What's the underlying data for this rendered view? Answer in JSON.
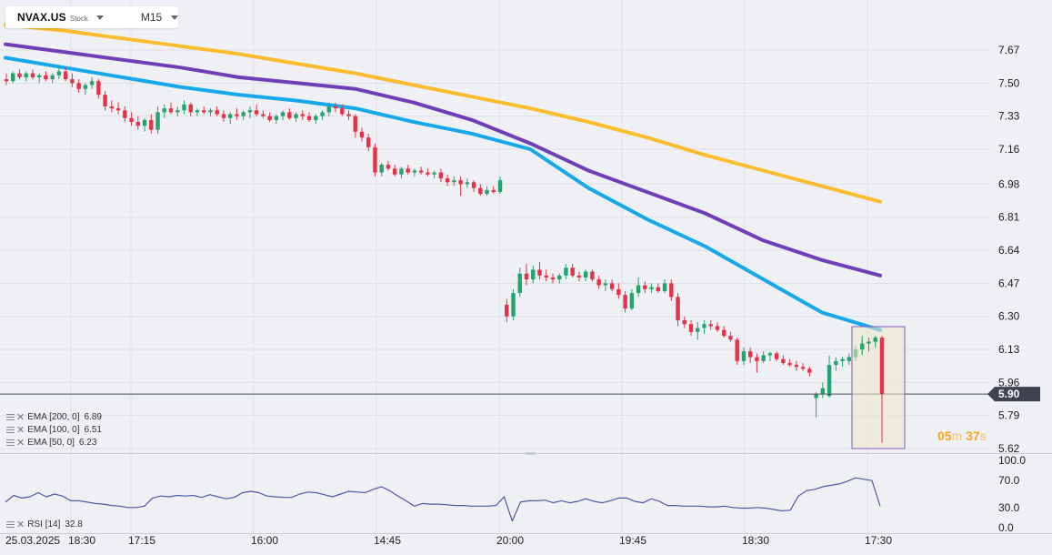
{
  "header": {
    "symbol": "NVAX.US",
    "instrument_type": "Stock",
    "timeframe": "M15"
  },
  "current_price_label": "5.90",
  "countdown": {
    "minutes": "05",
    "min_unit": "m",
    "seconds": "37",
    "sec_unit": "s"
  },
  "indicators": [
    {
      "label": "EMA [200, 0]",
      "value": "6.89",
      "color": "#fbbc2e"
    },
    {
      "label": "EMA [100, 0]",
      "value": "6.51",
      "color": "#6e3fb7"
    },
    {
      "label": "EMA [50, 0]",
      "value": "6.23",
      "color": "#17a8ea"
    }
  ],
  "rsi": {
    "label": "RSI [14]",
    "value": "32.8",
    "color": "#4d5aa8"
  },
  "chart_data": [
    {
      "type": "candlestick",
      "title": "NVAX.US",
      "y_ticks": [
        "7.67",
        "7.50",
        "7.33",
        "7.16",
        "6.98",
        "6.81",
        "6.64",
        "6.47",
        "6.30",
        "6.13",
        "5.96",
        "5.79",
        "5.62"
      ],
      "ylim": [
        5.62,
        7.67
      ],
      "x_ticks": [
        "25.03.2025",
        "18:30",
        "17:15",
        "16:00",
        "14:45",
        "20:00",
        "19:45",
        "18:30",
        "17:30"
      ],
      "current_price": 5.9,
      "grid": true,
      "candles": [
        {
          "o": 7.52,
          "h": 7.55,
          "l": 7.49,
          "c": 7.51
        },
        {
          "o": 7.51,
          "h": 7.56,
          "l": 7.5,
          "c": 7.55
        },
        {
          "o": 7.55,
          "h": 7.57,
          "l": 7.52,
          "c": 7.53
        },
        {
          "o": 7.53,
          "h": 7.56,
          "l": 7.51,
          "c": 7.55
        },
        {
          "o": 7.55,
          "h": 7.57,
          "l": 7.52,
          "c": 7.53
        },
        {
          "o": 7.53,
          "h": 7.55,
          "l": 7.5,
          "c": 7.54
        },
        {
          "o": 7.54,
          "h": 7.56,
          "l": 7.51,
          "c": 7.52
        },
        {
          "o": 7.52,
          "h": 7.55,
          "l": 7.5,
          "c": 7.54
        },
        {
          "o": 7.54,
          "h": 7.58,
          "l": 7.52,
          "c": 7.56
        },
        {
          "o": 7.56,
          "h": 7.58,
          "l": 7.51,
          "c": 7.52
        },
        {
          "o": 7.52,
          "h": 7.55,
          "l": 7.48,
          "c": 7.5
        },
        {
          "o": 7.5,
          "h": 7.52,
          "l": 7.45,
          "c": 7.47
        },
        {
          "o": 7.47,
          "h": 7.5,
          "l": 7.44,
          "c": 7.49
        },
        {
          "o": 7.49,
          "h": 7.53,
          "l": 7.47,
          "c": 7.51
        },
        {
          "o": 7.51,
          "h": 7.52,
          "l": 7.42,
          "c": 7.44
        },
        {
          "o": 7.44,
          "h": 7.46,
          "l": 7.36,
          "c": 7.38
        },
        {
          "o": 7.38,
          "h": 7.41,
          "l": 7.35,
          "c": 7.37
        },
        {
          "o": 7.37,
          "h": 7.4,
          "l": 7.34,
          "c": 7.36
        },
        {
          "o": 7.36,
          "h": 7.38,
          "l": 7.3,
          "c": 7.32
        },
        {
          "o": 7.32,
          "h": 7.35,
          "l": 7.28,
          "c": 7.3
        },
        {
          "o": 7.3,
          "h": 7.33,
          "l": 7.26,
          "c": 7.28
        },
        {
          "o": 7.28,
          "h": 7.32,
          "l": 7.25,
          "c": 7.31
        },
        {
          "o": 7.31,
          "h": 7.34,
          "l": 7.24,
          "c": 7.26
        },
        {
          "o": 7.26,
          "h": 7.38,
          "l": 7.24,
          "c": 7.35
        },
        {
          "o": 7.35,
          "h": 7.39,
          "l": 7.32,
          "c": 7.37
        },
        {
          "o": 7.37,
          "h": 7.4,
          "l": 7.34,
          "c": 7.35
        },
        {
          "o": 7.35,
          "h": 7.38,
          "l": 7.33,
          "c": 7.36
        },
        {
          "o": 7.36,
          "h": 7.41,
          "l": 7.34,
          "c": 7.39
        },
        {
          "o": 7.39,
          "h": 7.4,
          "l": 7.33,
          "c": 7.35
        },
        {
          "o": 7.35,
          "h": 7.37,
          "l": 7.33,
          "c": 7.36
        },
        {
          "o": 7.36,
          "h": 7.38,
          "l": 7.34,
          "c": 7.35
        },
        {
          "o": 7.35,
          "h": 7.37,
          "l": 7.33,
          "c": 7.36
        },
        {
          "o": 7.36,
          "h": 7.38,
          "l": 7.33,
          "c": 7.34
        },
        {
          "o": 7.34,
          "h": 7.36,
          "l": 7.3,
          "c": 7.32
        },
        {
          "o": 7.32,
          "h": 7.35,
          "l": 7.29,
          "c": 7.34
        },
        {
          "o": 7.34,
          "h": 7.37,
          "l": 7.31,
          "c": 7.33
        },
        {
          "o": 7.33,
          "h": 7.36,
          "l": 7.31,
          "c": 7.35
        },
        {
          "o": 7.35,
          "h": 7.38,
          "l": 7.32,
          "c": 7.36
        },
        {
          "o": 7.36,
          "h": 7.39,
          "l": 7.33,
          "c": 7.34
        },
        {
          "o": 7.34,
          "h": 7.36,
          "l": 7.32,
          "c": 7.33
        },
        {
          "o": 7.33,
          "h": 7.35,
          "l": 7.3,
          "c": 7.31
        },
        {
          "o": 7.31,
          "h": 7.34,
          "l": 7.29,
          "c": 7.33
        },
        {
          "o": 7.33,
          "h": 7.36,
          "l": 7.31,
          "c": 7.35
        },
        {
          "o": 7.35,
          "h": 7.37,
          "l": 7.31,
          "c": 7.32
        },
        {
          "o": 7.32,
          "h": 7.35,
          "l": 7.3,
          "c": 7.34
        },
        {
          "o": 7.34,
          "h": 7.36,
          "l": 7.31,
          "c": 7.33
        },
        {
          "o": 7.33,
          "h": 7.35,
          "l": 7.3,
          "c": 7.31
        },
        {
          "o": 7.31,
          "h": 7.34,
          "l": 7.29,
          "c": 7.33
        },
        {
          "o": 7.33,
          "h": 7.36,
          "l": 7.31,
          "c": 7.35
        },
        {
          "o": 7.35,
          "h": 7.4,
          "l": 7.33,
          "c": 7.38
        },
        {
          "o": 7.38,
          "h": 7.4,
          "l": 7.35,
          "c": 7.37
        },
        {
          "o": 7.37,
          "h": 7.39,
          "l": 7.33,
          "c": 7.34
        },
        {
          "o": 7.34,
          "h": 7.36,
          "l": 7.31,
          "c": 7.33
        },
        {
          "o": 7.33,
          "h": 7.34,
          "l": 7.22,
          "c": 7.25
        },
        {
          "o": 7.25,
          "h": 7.27,
          "l": 7.2,
          "c": 7.22
        },
        {
          "o": 7.22,
          "h": 7.24,
          "l": 7.15,
          "c": 7.17
        },
        {
          "o": 7.17,
          "h": 7.19,
          "l": 7.02,
          "c": 7.04
        },
        {
          "o": 7.04,
          "h": 7.09,
          "l": 7.02,
          "c": 7.08
        },
        {
          "o": 7.08,
          "h": 7.1,
          "l": 7.05,
          "c": 7.06
        },
        {
          "o": 7.06,
          "h": 7.08,
          "l": 7.02,
          "c": 7.03
        },
        {
          "o": 7.03,
          "h": 7.07,
          "l": 7.01,
          "c": 7.06
        },
        {
          "o": 7.06,
          "h": 7.08,
          "l": 7.03,
          "c": 7.04
        },
        {
          "o": 7.04,
          "h": 7.06,
          "l": 7.02,
          "c": 7.05
        },
        {
          "o": 7.05,
          "h": 7.07,
          "l": 7.03,
          "c": 7.04
        },
        {
          "o": 7.04,
          "h": 7.06,
          "l": 7.02,
          "c": 7.03
        },
        {
          "o": 7.03,
          "h": 7.05,
          "l": 7.01,
          "c": 7.04
        },
        {
          "o": 7.04,
          "h": 7.06,
          "l": 6.99,
          "c": 7.01
        },
        {
          "o": 7.01,
          "h": 7.03,
          "l": 6.97,
          "c": 6.99
        },
        {
          "o": 6.99,
          "h": 7.02,
          "l": 6.97,
          "c": 7.0
        },
        {
          "o": 7.0,
          "h": 7.02,
          "l": 6.92,
          "c": 6.98
        },
        {
          "o": 6.98,
          "h": 7.01,
          "l": 6.96,
          "c": 6.99
        },
        {
          "o": 6.99,
          "h": 7.0,
          "l": 6.94,
          "c": 6.96
        },
        {
          "o": 6.96,
          "h": 6.98,
          "l": 6.92,
          "c": 6.93
        },
        {
          "o": 6.93,
          "h": 6.97,
          "l": 6.92,
          "c": 6.95
        },
        {
          "o": 6.95,
          "h": 6.97,
          "l": 6.93,
          "c": 6.94
        },
        {
          "o": 6.94,
          "h": 7.02,
          "l": 6.93,
          "c": 7.0
        },
        {
          "o": 6.36,
          "h": 6.39,
          "l": 6.27,
          "c": 6.3
        },
        {
          "o": 6.3,
          "h": 6.44,
          "l": 6.28,
          "c": 6.42
        },
        {
          "o": 6.42,
          "h": 6.55,
          "l": 6.4,
          "c": 6.52
        },
        {
          "o": 6.52,
          "h": 6.57,
          "l": 6.46,
          "c": 6.49
        },
        {
          "o": 6.49,
          "h": 6.56,
          "l": 6.47,
          "c": 6.54
        },
        {
          "o": 6.54,
          "h": 6.58,
          "l": 6.49,
          "c": 6.51
        },
        {
          "o": 6.51,
          "h": 6.54,
          "l": 6.48,
          "c": 6.5
        },
        {
          "o": 6.5,
          "h": 6.52,
          "l": 6.47,
          "c": 6.49
        },
        {
          "o": 6.49,
          "h": 6.52,
          "l": 6.47,
          "c": 6.51
        },
        {
          "o": 6.51,
          "h": 6.57,
          "l": 6.49,
          "c": 6.55
        },
        {
          "o": 6.55,
          "h": 6.57,
          "l": 6.5,
          "c": 6.51
        },
        {
          "o": 6.51,
          "h": 6.53,
          "l": 6.48,
          "c": 6.5
        },
        {
          "o": 6.5,
          "h": 6.54,
          "l": 6.48,
          "c": 6.53
        },
        {
          "o": 6.53,
          "h": 6.54,
          "l": 6.48,
          "c": 6.49
        },
        {
          "o": 6.49,
          "h": 6.51,
          "l": 6.44,
          "c": 6.46
        },
        {
          "o": 6.46,
          "h": 6.49,
          "l": 6.43,
          "c": 6.47
        },
        {
          "o": 6.47,
          "h": 6.49,
          "l": 6.43,
          "c": 6.44
        },
        {
          "o": 6.44,
          "h": 6.47,
          "l": 6.39,
          "c": 6.41
        },
        {
          "o": 6.41,
          "h": 6.43,
          "l": 6.32,
          "c": 6.34
        },
        {
          "o": 6.34,
          "h": 6.44,
          "l": 6.33,
          "c": 6.42
        },
        {
          "o": 6.42,
          "h": 6.5,
          "l": 6.4,
          "c": 6.46
        },
        {
          "o": 6.46,
          "h": 6.48,
          "l": 6.42,
          "c": 6.44
        },
        {
          "o": 6.44,
          "h": 6.47,
          "l": 6.42,
          "c": 6.45
        },
        {
          "o": 6.45,
          "h": 6.47,
          "l": 6.42,
          "c": 6.43
        },
        {
          "o": 6.43,
          "h": 6.49,
          "l": 6.42,
          "c": 6.47
        },
        {
          "o": 6.47,
          "h": 6.49,
          "l": 6.38,
          "c": 6.4
        },
        {
          "o": 6.4,
          "h": 6.42,
          "l": 6.25,
          "c": 6.28
        },
        {
          "o": 6.28,
          "h": 6.3,
          "l": 6.24,
          "c": 6.26
        },
        {
          "o": 6.26,
          "h": 6.28,
          "l": 6.2,
          "c": 6.22
        },
        {
          "o": 6.22,
          "h": 6.27,
          "l": 6.18,
          "c": 6.24
        },
        {
          "o": 6.24,
          "h": 6.28,
          "l": 6.21,
          "c": 6.26
        },
        {
          "o": 6.26,
          "h": 6.28,
          "l": 6.23,
          "c": 6.25
        },
        {
          "o": 6.25,
          "h": 6.27,
          "l": 6.22,
          "c": 6.23
        },
        {
          "o": 6.23,
          "h": 6.25,
          "l": 6.19,
          "c": 6.2
        },
        {
          "o": 6.2,
          "h": 6.22,
          "l": 6.17,
          "c": 6.18
        },
        {
          "o": 6.18,
          "h": 6.19,
          "l": 6.05,
          "c": 6.07
        },
        {
          "o": 6.07,
          "h": 6.14,
          "l": 6.05,
          "c": 6.12
        },
        {
          "o": 6.12,
          "h": 6.14,
          "l": 6.06,
          "c": 6.09
        },
        {
          "o": 6.09,
          "h": 6.11,
          "l": 6.01,
          "c": 6.07
        },
        {
          "o": 6.07,
          "h": 6.12,
          "l": 6.06,
          "c": 6.1
        },
        {
          "o": 6.1,
          "h": 6.12,
          "l": 6.07,
          "c": 6.11
        },
        {
          "o": 6.11,
          "h": 6.12,
          "l": 6.07,
          "c": 6.08
        },
        {
          "o": 6.08,
          "h": 6.1,
          "l": 6.05,
          "c": 6.06
        },
        {
          "o": 6.06,
          "h": 6.08,
          "l": 6.04,
          "c": 6.05
        },
        {
          "o": 6.05,
          "h": 6.07,
          "l": 6.02,
          "c": 6.04
        },
        {
          "o": 6.04,
          "h": 6.06,
          "l": 6.02,
          "c": 6.03
        },
        {
          "o": 6.03,
          "h": 6.04,
          "l": 5.99,
          "c": 6.01
        },
        {
          "o": 5.88,
          "h": 5.91,
          "l": 5.78,
          "c": 5.9
        },
        {
          "o": 5.9,
          "h": 5.96,
          "l": 5.88,
          "c": 5.93
        },
        {
          "o": 5.89,
          "h": 6.1,
          "l": 5.88,
          "c": 6.05
        },
        {
          "o": 6.05,
          "h": 6.09,
          "l": 6.02,
          "c": 6.07
        },
        {
          "o": 6.07,
          "h": 6.09,
          "l": 6.04,
          "c": 6.08
        },
        {
          "o": 6.07,
          "h": 6.11,
          "l": 6.05,
          "c": 6.09
        },
        {
          "o": 6.09,
          "h": 6.15,
          "l": 6.07,
          "c": 6.13
        },
        {
          "o": 6.13,
          "h": 6.2,
          "l": 6.1,
          "c": 6.16
        },
        {
          "o": 6.16,
          "h": 6.19,
          "l": 6.12,
          "c": 6.17
        },
        {
          "o": 6.17,
          "h": 6.2,
          "l": 6.14,
          "c": 6.19
        },
        {
          "o": 6.19,
          "h": 6.2,
          "l": 5.65,
          "c": 5.9
        }
      ],
      "ema_200": [
        7.8,
        7.77,
        7.73,
        7.69,
        7.65,
        7.6,
        7.55,
        7.49,
        7.43,
        7.37,
        7.3,
        7.22,
        7.13,
        7.05,
        6.97,
        6.89
      ],
      "ema_100": [
        7.7,
        7.66,
        7.62,
        7.58,
        7.53,
        7.5,
        7.47,
        7.4,
        7.31,
        7.19,
        7.05,
        6.94,
        6.83,
        6.69,
        6.59,
        6.51
      ],
      "ema_50": [
        7.63,
        7.58,
        7.53,
        7.48,
        7.44,
        7.41,
        7.37,
        7.3,
        7.24,
        7.16,
        6.96,
        6.8,
        6.66,
        6.49,
        6.32,
        6.23
      ],
      "rsi_panel": {
        "y_ticks": [
          "100.0",
          "70.0",
          "30.0",
          "0.0"
        ],
        "ylim": [
          0,
          100
        ],
        "values": [
          38,
          48,
          44,
          46,
          52,
          46,
          50,
          47,
          40,
          40,
          38,
          36,
          35,
          33,
          32,
          30,
          30,
          32,
          44,
          47,
          46,
          48,
          47,
          48,
          45,
          49,
          46,
          43,
          45,
          52,
          54,
          52,
          47,
          46,
          45,
          45,
          50,
          53,
          52,
          49,
          46,
          50,
          54,
          53,
          52,
          57,
          61,
          55,
          47,
          40,
          32,
          36,
          35,
          35,
          34,
          33,
          33,
          32,
          32,
          32,
          33,
          46,
          10,
          38,
          40,
          40,
          41,
          37,
          40,
          37,
          39,
          43,
          39,
          37,
          40,
          44,
          44,
          39,
          37,
          43,
          39,
          33,
          33,
          32,
          32,
          32,
          31,
          31,
          32,
          30,
          29,
          29,
          30,
          29,
          27,
          25,
          26,
          47,
          55,
          57,
          61,
          63,
          65,
          69,
          74,
          72,
          70,
          32
        ]
      }
    }
  ]
}
